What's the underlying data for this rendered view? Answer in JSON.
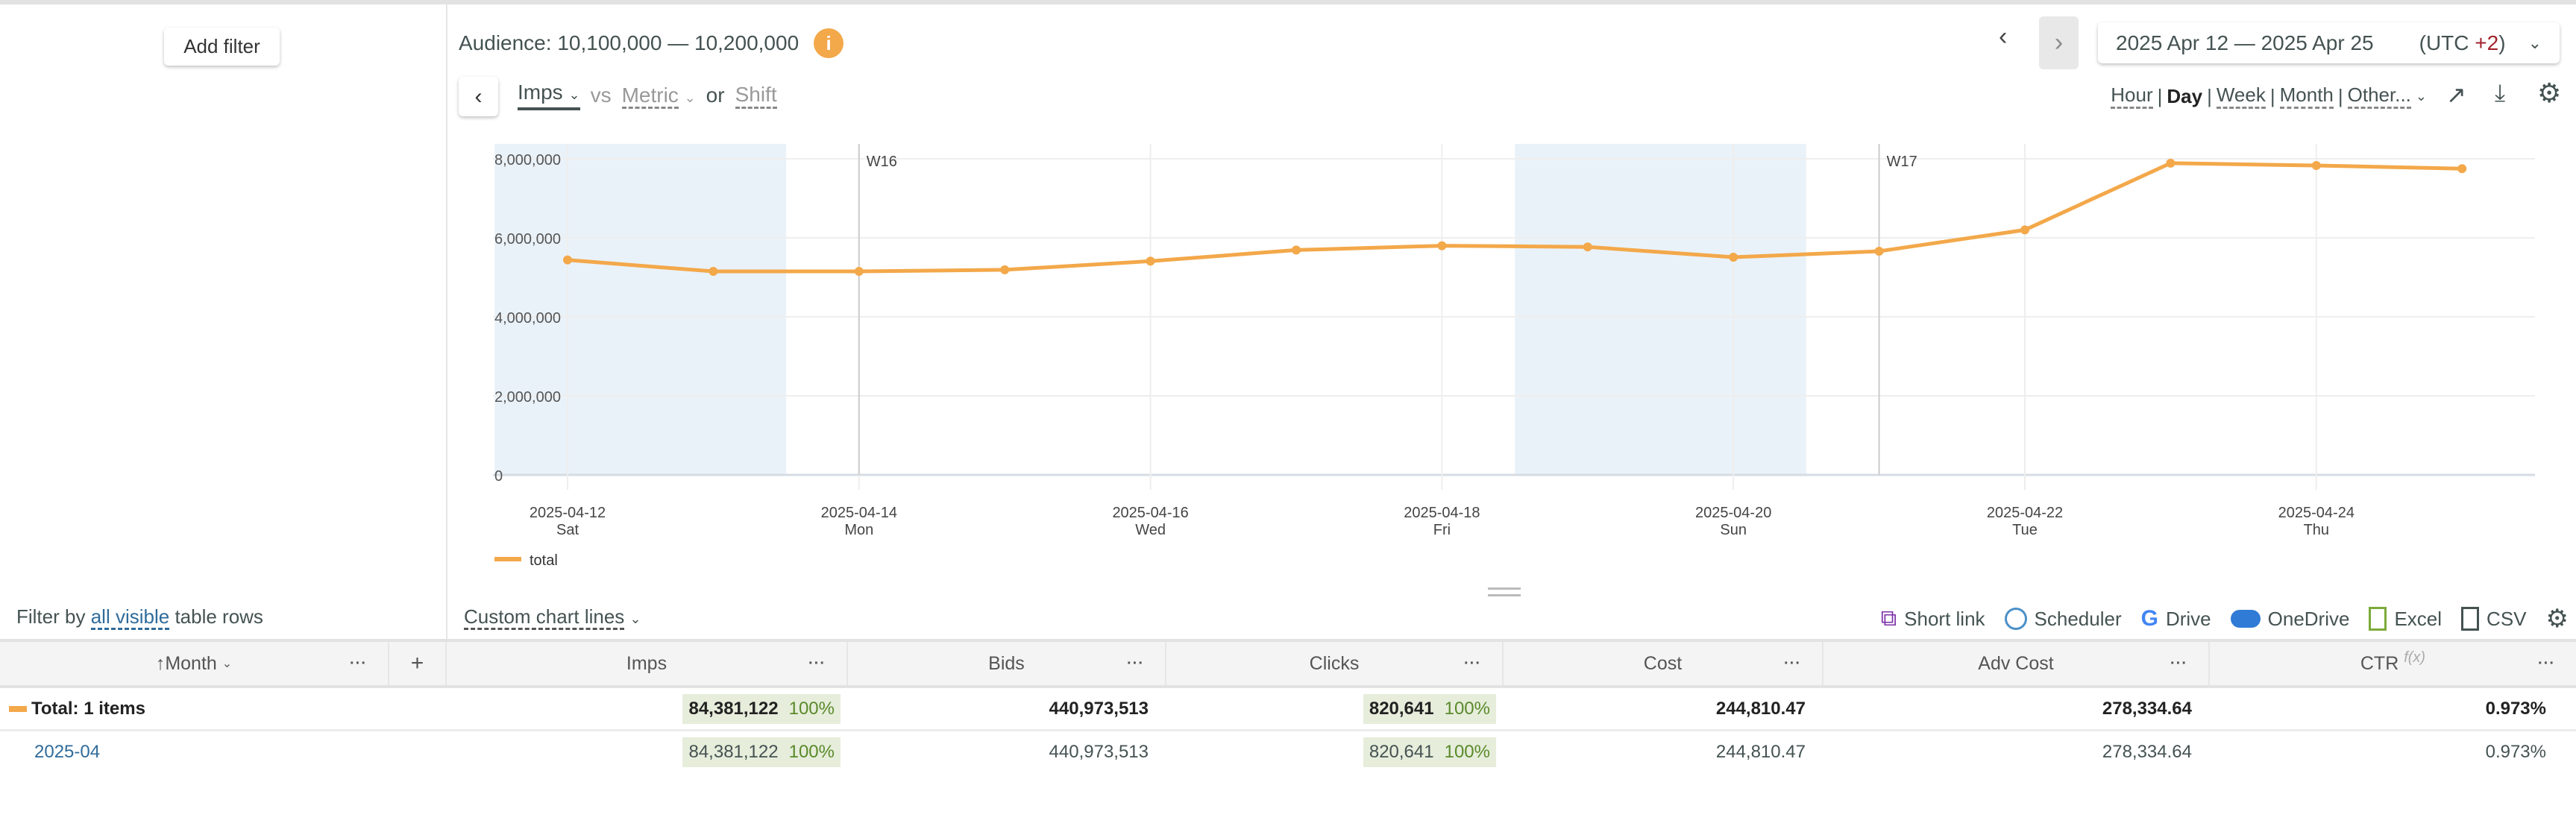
{
  "filters": {
    "add_filter": "Add filter",
    "filter_by_prefix": "Filter by",
    "filter_by_link": "all visible",
    "filter_by_suffix": "table rows"
  },
  "header": {
    "audience": "Audience: 10,100,000 — 10,200,000",
    "info_icon": "info-icon",
    "metric": "Imps",
    "vs": "vs",
    "compare_metric": "Metric",
    "or": "or",
    "shift": "Shift",
    "date_range": "2025 Apr 12 — 2025 Apr 25",
    "tz_prefix": "(UTC ",
    "tz_offset": "+2",
    "tz_suffix": ")",
    "tz_color": "#a3222c",
    "granularity": [
      "Hour",
      "Day",
      "Week",
      "Month",
      "Other..."
    ],
    "granularity_selected": "Day",
    "sep": "|"
  },
  "toolbar": {
    "custom_lines": "Custom chart lines",
    "short_link": "Short link",
    "scheduler": "Scheduler",
    "drive": "Drive",
    "onedrive": "OneDrive",
    "excel": "Excel",
    "csv": "CSV"
  },
  "chart_data": {
    "type": "line",
    "x": [
      "2025-04-12",
      "2025-04-13",
      "2025-04-14",
      "2025-04-15",
      "2025-04-16",
      "2025-04-17",
      "2025-04-18",
      "2025-04-19",
      "2025-04-20",
      "2025-04-21",
      "2025-04-22",
      "2025-04-23",
      "2025-04-24",
      "2025-04-25"
    ],
    "series": [
      {
        "name": "total",
        "color": "#f3a84a",
        "values": [
          5440000,
          5150000,
          5150000,
          5190000,
          5410000,
          5690000,
          5800000,
          5770000,
          5510000,
          5660000,
          6200000,
          7890000,
          7830000,
          7750000
        ]
      }
    ],
    "ylim": [
      0,
      8000000
    ],
    "yticks": [
      "0",
      "2,000,000",
      "4,000,000",
      "6,000,000",
      "8,000,000"
    ],
    "xticks": [
      {
        "date": "2025-04-12",
        "day": "Sat"
      },
      {
        "date": "2025-04-14",
        "day": "Mon"
      },
      {
        "date": "2025-04-16",
        "day": "Wed"
      },
      {
        "date": "2025-04-18",
        "day": "Fri"
      },
      {
        "date": "2025-04-20",
        "day": "Sun"
      },
      {
        "date": "2025-04-22",
        "day": "Tue"
      },
      {
        "date": "2025-04-24",
        "day": "Thu"
      }
    ],
    "week_markers": [
      {
        "label": "W16",
        "date": "2025-04-14"
      },
      {
        "label": "W17",
        "date": "2025-04-21"
      }
    ],
    "weekends": [
      [
        "2025-04-12",
        "2025-04-13"
      ],
      [
        "2025-04-19",
        "2025-04-20"
      ]
    ],
    "weekend_color": "#eaf2f9",
    "grid": true,
    "legend": "bottom-left"
  },
  "table": {
    "columns": [
      "Month",
      "Imps",
      "Bids",
      "Clicks",
      "Cost",
      "Adv Cost",
      "CTR"
    ],
    "ctr_fx": "f(x)",
    "more": "···",
    "add": "+",
    "rows": [
      {
        "label": "Total: 1 items",
        "imps": "84,381,122",
        "imps_pct": "100%",
        "bids": "440,973,513",
        "clicks": "820,641",
        "clicks_pct": "100%",
        "cost": "244,810.47",
        "adv_cost": "278,334.64",
        "ctr": "0.973%"
      },
      {
        "label": "2025-04",
        "imps": "84,381,122",
        "imps_pct": "100%",
        "bids": "440,973,513",
        "clicks": "820,641",
        "clicks_pct": "100%",
        "cost": "244,810.47",
        "adv_cost": "278,334.64",
        "ctr": "0.973%"
      }
    ]
  }
}
